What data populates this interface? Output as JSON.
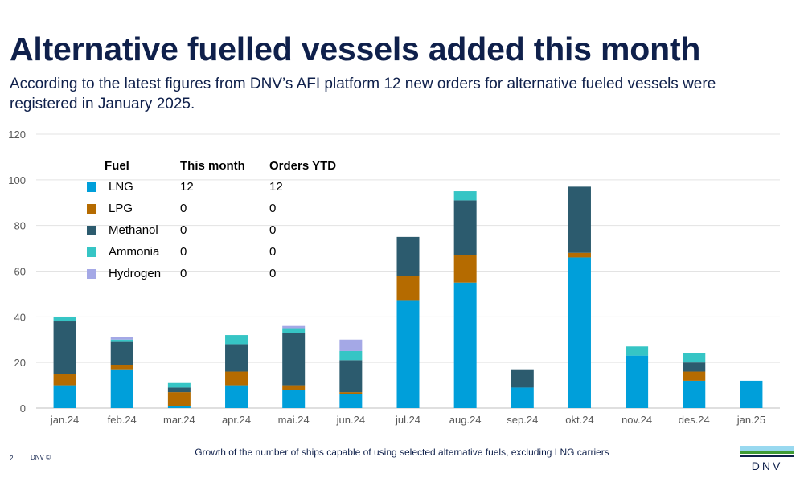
{
  "header": {
    "title": "Alternative fuelled vessels added this month",
    "subtitle": "According to the latest figures from DNV’s AFI platform 12 new orders for alternative fueled vessels were registered in January 2025."
  },
  "chart_data": {
    "type": "bar",
    "stacked": true,
    "categories": [
      "jan.24",
      "feb.24",
      "mar.24",
      "apr.24",
      "mai.24",
      "jun.24",
      "jul.24",
      "aug.24",
      "sep.24",
      "okt.24",
      "nov.24",
      "des.24",
      "jan.25"
    ],
    "ylim": [
      0,
      120
    ],
    "yticks": [
      0,
      20,
      40,
      60,
      80,
      100,
      120
    ],
    "grid": true,
    "series": [
      {
        "name": "LNG",
        "color": "#009fda",
        "values": [
          10,
          17,
          1,
          10,
          8,
          6,
          47,
          55,
          9,
          66,
          23,
          12,
          12
        ]
      },
      {
        "name": "LPG",
        "color": "#b56b00",
        "values": [
          5,
          2,
          6,
          6,
          2,
          1,
          11,
          12,
          0,
          2,
          0,
          4,
          0
        ]
      },
      {
        "name": "Methanol",
        "color": "#2c5b6e",
        "values": [
          23,
          10,
          2,
          12,
          23,
          14,
          17,
          24,
          8,
          29,
          0,
          4,
          0
        ]
      },
      {
        "name": "Ammonia",
        "color": "#36c5c5",
        "values": [
          2,
          1,
          2,
          4,
          2,
          4,
          0,
          4,
          0,
          0,
          4,
          4,
          0
        ]
      },
      {
        "name": "Hydrogen",
        "color": "#a4a8e6",
        "values": [
          0,
          1,
          0,
          0,
          1,
          5,
          0,
          0,
          0,
          0,
          0,
          0,
          0
        ]
      }
    ],
    "legend_table": {
      "headers": {
        "fuel": "Fuel",
        "this_month": "This month",
        "ytd": "Orders YTD"
      },
      "rows": [
        {
          "fuel": "LNG",
          "this_month": "12",
          "ytd": "12",
          "color": "#009fda"
        },
        {
          "fuel": "LPG",
          "this_month": "0",
          "ytd": "0",
          "color": "#b56b00"
        },
        {
          "fuel": "Methanol",
          "this_month": "0",
          "ytd": "0",
          "color": "#2c5b6e"
        },
        {
          "fuel": "Ammonia",
          "this_month": "0",
          "ytd": "0",
          "color": "#36c5c5"
        },
        {
          "fuel": "Hydrogen",
          "this_month": "0",
          "ytd": "0",
          "color": "#a4a8e6"
        }
      ]
    },
    "caption": "Growth of the number of ships capable of using selected alternative fuels, excluding LNG carriers"
  },
  "footer": {
    "page_number": "2",
    "copyright": "DNV ©",
    "logo_text": "DNV"
  }
}
